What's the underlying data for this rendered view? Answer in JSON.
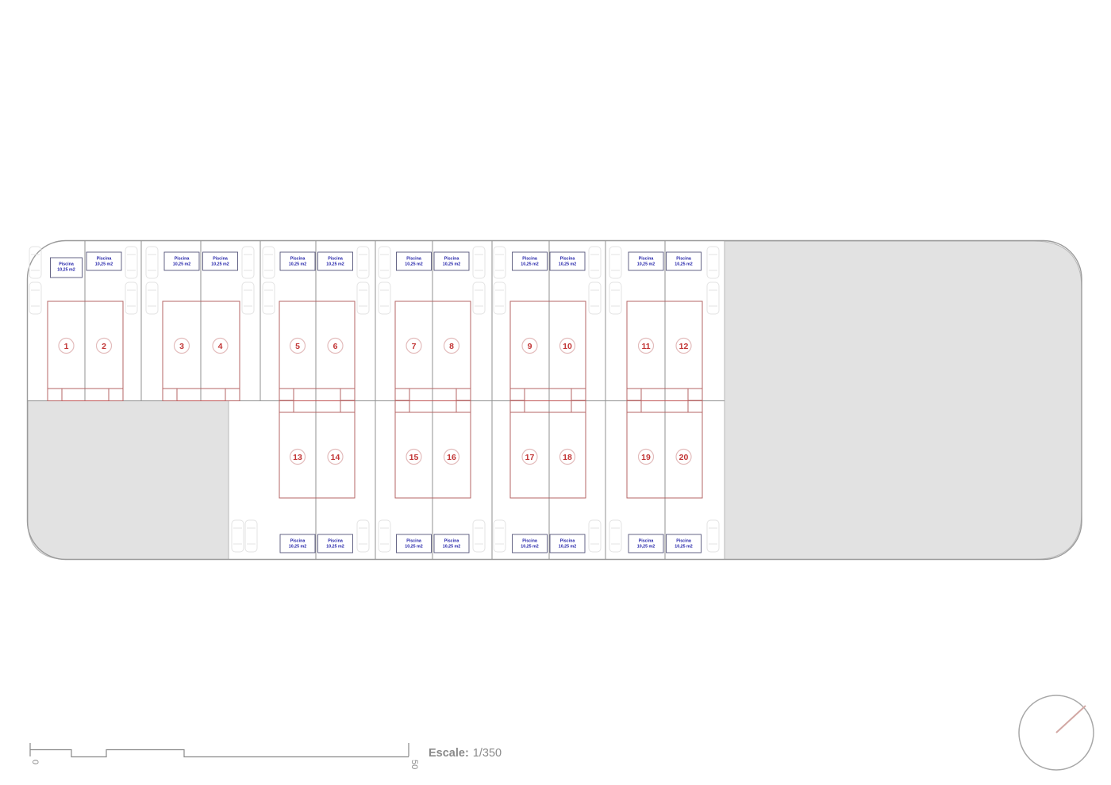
{
  "units": [
    {
      "number": "1",
      "pool": {
        "name": "Piscina",
        "area": "10,25 m2"
      }
    },
    {
      "number": "2",
      "pool": {
        "name": "Piscina",
        "area": "10,25 m2"
      }
    },
    {
      "number": "3",
      "pool": {
        "name": "Piscina",
        "area": "10,25 m2"
      }
    },
    {
      "number": "4",
      "pool": {
        "name": "Piscina",
        "area": "10,25 m2"
      }
    },
    {
      "number": "5",
      "pool": {
        "name": "Piscina",
        "area": "10,25 m2"
      }
    },
    {
      "number": "6",
      "pool": {
        "name": "Piscina",
        "area": "10,25 m2"
      }
    },
    {
      "number": "7",
      "pool": {
        "name": "Piscina",
        "area": "10,25 m2"
      }
    },
    {
      "number": "8",
      "pool": {
        "name": "Piscina",
        "area": "10,25 m2"
      }
    },
    {
      "number": "9",
      "pool": {
        "name": "Piscina",
        "area": "10,25 m2"
      }
    },
    {
      "number": "10",
      "pool": {
        "name": "Piscina",
        "area": "10,25 m2"
      }
    },
    {
      "number": "11",
      "pool": {
        "name": "Piscina",
        "area": "10,25 m2"
      }
    },
    {
      "number": "12",
      "pool": {
        "name": "Piscina",
        "area": "10,25 m2"
      }
    },
    {
      "number": "13",
      "pool": {
        "name": "Piscina",
        "area": "10,25 m2"
      }
    },
    {
      "number": "14",
      "pool": {
        "name": "Piscina",
        "area": "10,25 m2"
      }
    },
    {
      "number": "15",
      "pool": {
        "name": "Piscina",
        "area": "10,25 m2"
      }
    },
    {
      "number": "16",
      "pool": {
        "name": "Piscina",
        "area": "10,25 m2"
      }
    },
    {
      "number": "17",
      "pool": {
        "name": "Piscina",
        "area": "10,25 m2"
      }
    },
    {
      "number": "18",
      "pool": {
        "name": "Piscina",
        "area": "10,25 m2"
      }
    },
    {
      "number": "19",
      "pool": {
        "name": "Piscina",
        "area": "10,25 m2"
      }
    },
    {
      "number": "20",
      "pool": {
        "name": "Piscina",
        "area": "10,25 m2"
      }
    }
  ],
  "scale_bar": {
    "start": "0",
    "end": "50"
  },
  "scale": {
    "label": "Escale:",
    "value": "1/350"
  },
  "colors": {
    "building_outline": "#b56565",
    "unit_number": "#c23535",
    "unit_circle": "#e3bcbc",
    "pool_text": "#2020a8",
    "pool_border": "#55557a",
    "divider": "#909090",
    "boundary": "#9a9a9a",
    "area_fill": "#e2e2e2",
    "area_stroke": "#b8b8b8",
    "car": "#e3e3e3",
    "scale_text": "#8a8a8a",
    "compass": "#a8a8a8",
    "needle": "#d2a8a4",
    "red_segment": "#c05555"
  }
}
